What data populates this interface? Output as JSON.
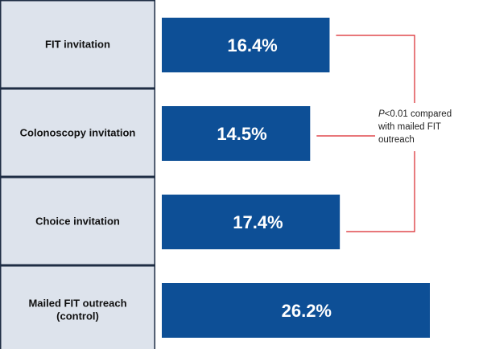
{
  "chart_data": {
    "type": "bar",
    "orientation": "horizontal",
    "categories": [
      [
        "FIT invitation"
      ],
      [
        "Colonoscopy invitation"
      ],
      [
        "Choice invitation"
      ],
      [
        "Mailed FIT outreach",
        "(control)"
      ]
    ],
    "values": [
      16.4,
      14.5,
      17.4,
      26.2
    ],
    "value_labels": [
      "16.4%",
      "14.5%",
      "17.4%",
      "26.2%"
    ],
    "xlim": [
      0,
      32
    ],
    "annotation": {
      "p_symbol": "P",
      "lines": [
        "<0.01 compared",
        "with mailed FIT",
        "outreach"
      ],
      "applies_to": [
        "FIT invitation",
        "Colonoscopy invitation",
        "Choice invitation"
      ]
    },
    "colors": {
      "bar": "#0d4f96",
      "category_box": "#dde3ec",
      "bracket": "#d9262b"
    }
  }
}
